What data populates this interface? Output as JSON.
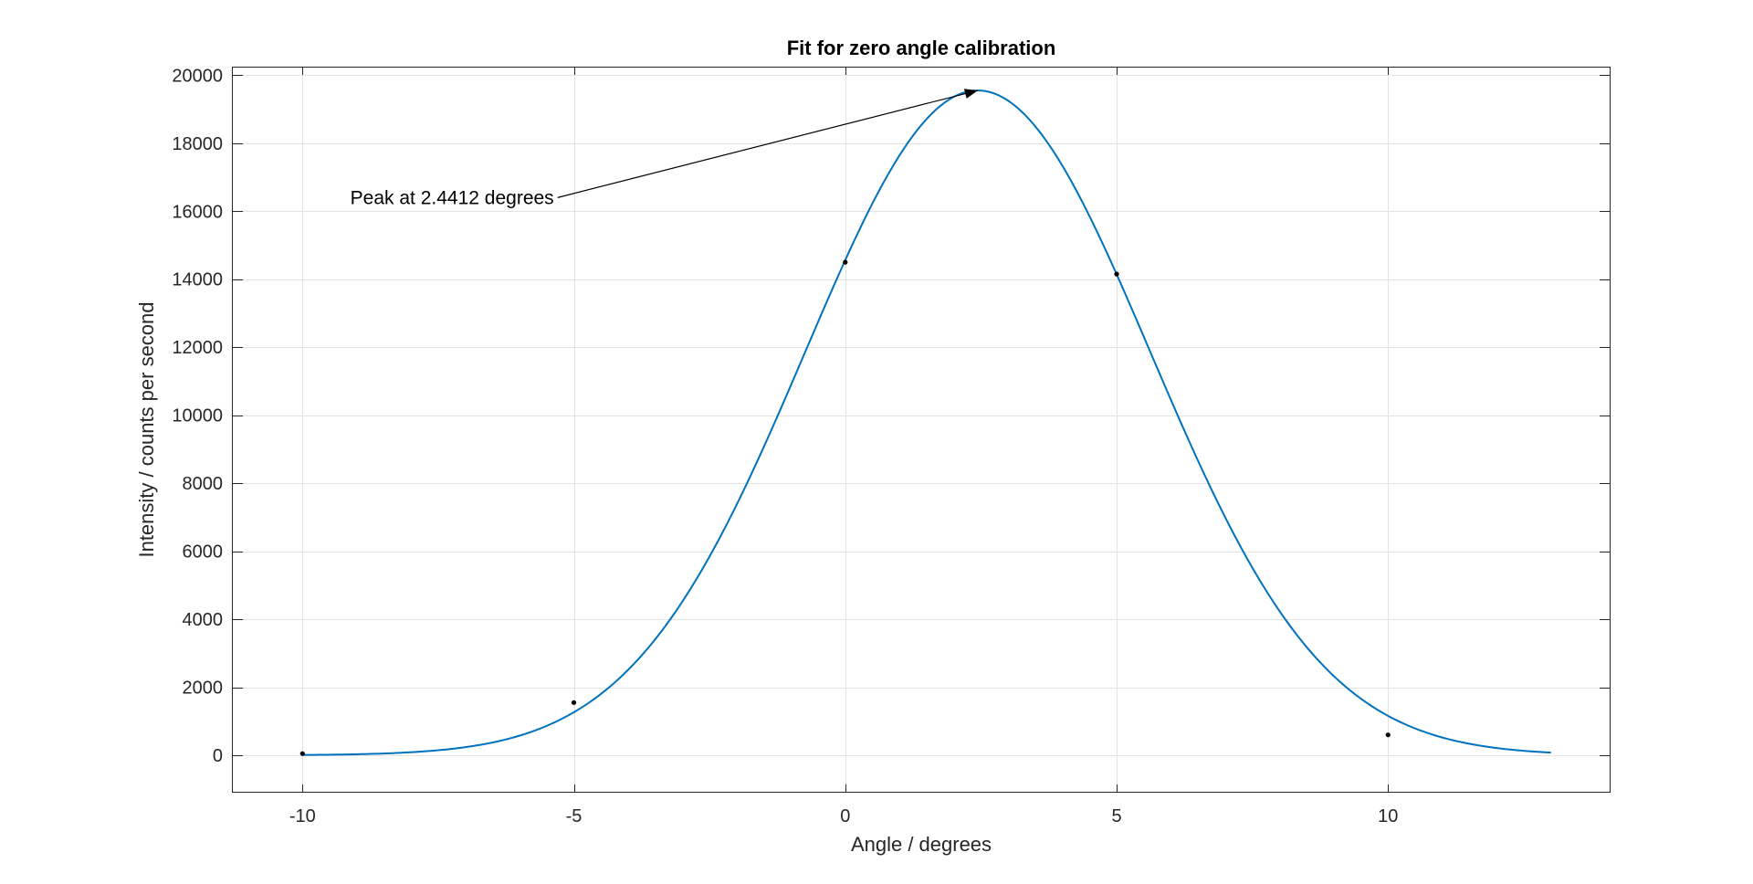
{
  "chart_data": {
    "type": "line",
    "title": "Fit for zero angle calibration",
    "xlabel": "Angle / degrees",
    "ylabel": "Intensity / counts per second",
    "xlim": [
      -11.3,
      14.1
    ],
    "ylim": [
      -1100,
      20250
    ],
    "xticks": [
      -10,
      -5,
      0,
      5,
      10
    ],
    "yticks": [
      0,
      2000,
      4000,
      6000,
      8000,
      10000,
      12000,
      14000,
      16000,
      18000,
      20000
    ],
    "grid": true,
    "series": [
      {
        "kind": "fit-curve",
        "color": "#0072BD",
        "model": "gaussian",
        "amplitude": 19550,
        "center": 2.4412,
        "sigma": 3.18,
        "x_range": [
          -10,
          13
        ]
      },
      {
        "kind": "measured-points",
        "color": "#000000",
        "x": [
          -10,
          -5,
          0,
          5,
          10
        ],
        "y": [
          50,
          1550,
          14500,
          14150,
          600
        ]
      }
    ],
    "annotation": {
      "text": "Peak at 2.4412 degrees",
      "arrow_from": [
        -5.3,
        16400
      ],
      "arrow_to": [
        2.4412,
        19550
      ]
    }
  }
}
